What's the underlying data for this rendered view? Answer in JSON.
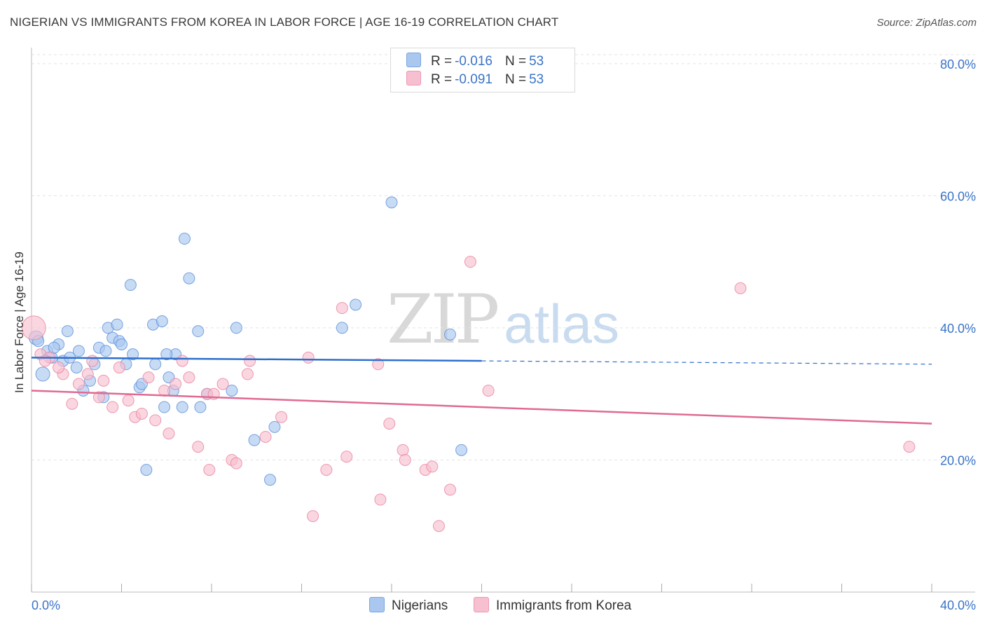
{
  "title": "NIGERIAN VS IMMIGRANTS FROM KOREA IN LABOR FORCE | AGE 16-19 CORRELATION CHART",
  "source": "Source: ZipAtlas.com",
  "watermark": {
    "zip": "ZIP",
    "atlas": "atlas"
  },
  "legend": {
    "rows": [
      {
        "r_label": "R =",
        "r_value": "-0.016",
        "n_label": "N =",
        "n_value": "53",
        "color": "#a9c7ef",
        "border": "#7aa6e0"
      },
      {
        "r_label": "R =",
        "r_value": "-0.091",
        "n_label": "N =",
        "n_value": "53",
        "color": "#f7c0d0",
        "border": "#ee98b2"
      }
    ]
  },
  "bottom_legend": [
    {
      "label": "Nigerians",
      "color": "#a9c7ef",
      "border": "#7aa6e0"
    },
    {
      "label": "Immigrants from Korea",
      "color": "#f7c0d0",
      "border": "#ee98b2"
    }
  ],
  "chart_data": {
    "type": "scatter",
    "title": "NIGERIAN VS IMMIGRANTS FROM KOREA IN LABOR FORCE | AGE 16-19 CORRELATION CHART",
    "xlabel": "",
    "ylabel": "In Labor Force | Age 16-19",
    "xlim": [
      0,
      40
    ],
    "ylim": [
      0,
      82
    ],
    "x_tick_labels": [
      "0.0%",
      "40.0%"
    ],
    "y_tick_labels": [
      "20.0%",
      "40.0%",
      "60.0%",
      "80.0%"
    ],
    "y_ticks": [
      20,
      40,
      60,
      80
    ],
    "grid": true,
    "legend_position": "top-center",
    "series": [
      {
        "name": "Nigerians",
        "color": "#5b8fd8",
        "fill": "#a9c7ef",
        "trend": {
          "x0": 0,
          "y0": 35.5,
          "x1": 20,
          "y1": 35.0,
          "dashed_to_x": 40,
          "dashed_to_y": 34.5,
          "color": "#2e6fcc"
        },
        "points": [
          [
            0.2,
            38.5
          ],
          [
            0.5,
            33.0
          ],
          [
            0.7,
            36.5
          ],
          [
            0.9,
            35.5
          ],
          [
            1.2,
            37.5
          ],
          [
            1.4,
            35.0
          ],
          [
            1.6,
            39.5
          ],
          [
            1.7,
            35.5
          ],
          [
            2.0,
            34.0
          ],
          [
            2.1,
            36.5
          ],
          [
            2.3,
            30.5
          ],
          [
            2.6,
            32.0
          ],
          [
            2.8,
            34.5
          ],
          [
            3.0,
            37.0
          ],
          [
            3.2,
            29.5
          ],
          [
            3.4,
            40.0
          ],
          [
            3.6,
            38.5
          ],
          [
            3.8,
            40.5
          ],
          [
            3.9,
            38.0
          ],
          [
            4.0,
            37.5
          ],
          [
            4.2,
            34.5
          ],
          [
            4.4,
            46.5
          ],
          [
            4.5,
            36.0
          ],
          [
            4.8,
            31.0
          ],
          [
            4.9,
            31.5
          ],
          [
            5.1,
            18.5
          ],
          [
            5.4,
            40.5
          ],
          [
            5.5,
            34.5
          ],
          [
            5.8,
            41.0
          ],
          [
            5.9,
            28.0
          ],
          [
            6.1,
            32.5
          ],
          [
            6.3,
            30.5
          ],
          [
            6.4,
            36.0
          ],
          [
            6.7,
            28.0
          ],
          [
            6.8,
            53.5
          ],
          [
            7.0,
            47.5
          ],
          [
            7.4,
            39.5
          ],
          [
            7.5,
            28.0
          ],
          [
            7.8,
            30.0
          ],
          [
            8.9,
            30.5
          ],
          [
            9.1,
            40.0
          ],
          [
            9.9,
            23.0
          ],
          [
            10.6,
            17.0
          ],
          [
            10.8,
            25.0
          ],
          [
            13.8,
            40.0
          ],
          [
            14.4,
            43.5
          ],
          [
            16.0,
            59.0
          ],
          [
            18.6,
            39.0
          ],
          [
            19.1,
            21.5
          ],
          [
            0.3,
            38.0
          ],
          [
            1.0,
            37.0
          ],
          [
            6.0,
            36.0
          ],
          [
            3.3,
            36.5
          ]
        ]
      },
      {
        "name": "Immigrants from Korea",
        "color": "#e9829f",
        "fill": "#f7c0d0",
        "trend": {
          "x0": 0,
          "y0": 30.5,
          "x1": 40,
          "y1": 25.5,
          "color": "#e06a92"
        },
        "points": [
          [
            0.1,
            40.0
          ],
          [
            0.4,
            36.0
          ],
          [
            0.8,
            35.5
          ],
          [
            1.4,
            33.0
          ],
          [
            1.8,
            28.5
          ],
          [
            2.1,
            31.5
          ],
          [
            2.5,
            33.0
          ],
          [
            2.7,
            35.0
          ],
          [
            3.0,
            29.5
          ],
          [
            3.2,
            32.0
          ],
          [
            3.6,
            28.0
          ],
          [
            3.9,
            34.0
          ],
          [
            4.3,
            29.0
          ],
          [
            4.6,
            26.5
          ],
          [
            4.9,
            27.0
          ],
          [
            5.2,
            32.5
          ],
          [
            5.5,
            26.0
          ],
          [
            5.9,
            30.5
          ],
          [
            6.1,
            24.0
          ],
          [
            6.4,
            31.5
          ],
          [
            6.7,
            35.0
          ],
          [
            7.0,
            32.5
          ],
          [
            7.4,
            22.0
          ],
          [
            7.8,
            30.0
          ],
          [
            7.9,
            18.5
          ],
          [
            8.1,
            30.0
          ],
          [
            8.5,
            31.5
          ],
          [
            8.9,
            20.0
          ],
          [
            9.1,
            19.5
          ],
          [
            9.6,
            33.0
          ],
          [
            9.7,
            35.0
          ],
          [
            10.4,
            23.5
          ],
          [
            11.1,
            26.5
          ],
          [
            12.3,
            35.5
          ],
          [
            12.5,
            11.5
          ],
          [
            13.1,
            18.5
          ],
          [
            13.8,
            43.0
          ],
          [
            14.0,
            20.5
          ],
          [
            15.4,
            34.5
          ],
          [
            15.5,
            14.0
          ],
          [
            15.9,
            25.5
          ],
          [
            16.5,
            21.5
          ],
          [
            16.6,
            20.0
          ],
          [
            17.5,
            18.5
          ],
          [
            17.8,
            19.0
          ],
          [
            18.1,
            10.0
          ],
          [
            18.6,
            15.5
          ],
          [
            19.5,
            50.0
          ],
          [
            20.3,
            30.5
          ],
          [
            31.5,
            46.0
          ],
          [
            39.0,
            22.0
          ],
          [
            0.6,
            35.0
          ],
          [
            1.2,
            34.0
          ]
        ]
      }
    ]
  }
}
